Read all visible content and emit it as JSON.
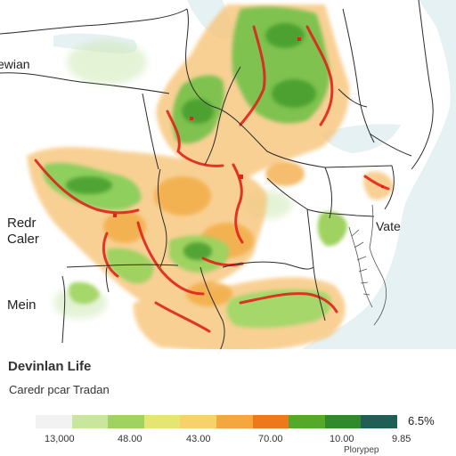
{
  "map": {
    "labels": {
      "top_left": "ewian",
      "redr": "Redr",
      "caler": "Caler",
      "mein": "Mein",
      "vate": "Vate"
    },
    "colors": {
      "water": "#e6f1f4",
      "land": "#ffffff",
      "borders": "#2b2b2b",
      "hot_edge": "#e0231c"
    }
  },
  "legend": {
    "title": "Devinlan Life",
    "subtitle": "Caredr pcar Tradan",
    "unit_label": "6.5%",
    "sub_label": "Plorypep",
    "ticks": [
      "13,000",
      "48.00",
      "43.00",
      "70.00",
      "10.00",
      "9.85"
    ],
    "swatches": [
      "#f2f2f2",
      "#c8e79a",
      "#9fd261",
      "#e4e573",
      "#f7d26a",
      "#f4a640",
      "#ec7a1c",
      "#52a92a",
      "#2f8a2a",
      "#1f5f55"
    ]
  }
}
